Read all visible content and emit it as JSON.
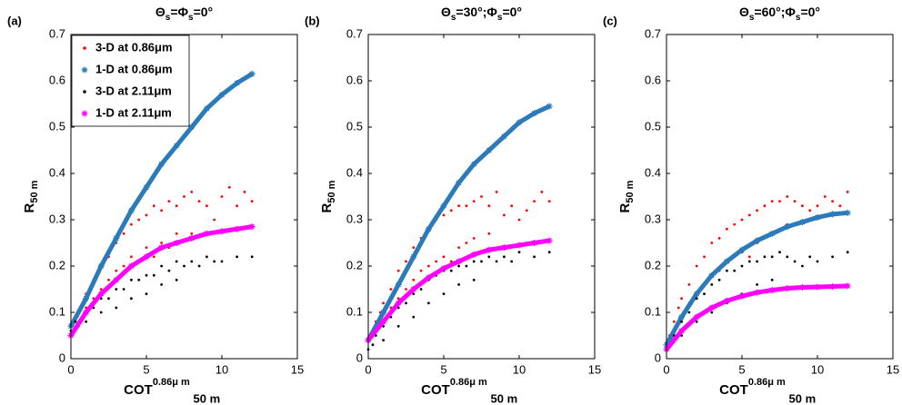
{
  "chart_data": [
    {
      "type": "scatter",
      "panel_label": "(a)",
      "title": [
        "Θ",
        "s",
        "=Φ",
        "s",
        "=0°"
      ],
      "x_label": "COT",
      "x_label_sup": "0.86μ m",
      "x_label_sub": "50 m",
      "y_label": "R",
      "y_label_sub": "50 m",
      "xlim": [
        0,
        15
      ],
      "ylim": [
        0,
        0.7
      ],
      "xticks": [
        0,
        5,
        10,
        15
      ],
      "yticks": [
        0,
        0.1,
        0.2,
        0.3,
        0.4,
        0.5,
        0.6,
        0.7
      ],
      "legend": "upper left",
      "series": [
        {
          "name": "3-D at 0.86μm",
          "color": "#ff0000",
          "marker": "dot",
          "x": [
            0.2,
            0.5,
            0.8,
            1,
            1,
            1.5,
            1.5,
            2,
            2,
            2.5,
            2.5,
            3,
            3,
            3.5,
            3.5,
            4,
            4,
            4.5,
            4.5,
            5,
            5,
            5.5,
            5.5,
            6,
            6,
            6.5,
            6.5,
            7,
            7,
            7.5,
            8,
            8,
            8.5,
            9,
            9.5,
            10,
            10.5,
            11,
            11.5,
            12
          ],
          "values": [
            0.08,
            0.1,
            0.12,
            0.14,
            0.11,
            0.17,
            0.13,
            0.2,
            0.15,
            0.22,
            0.17,
            0.25,
            0.19,
            0.27,
            0.2,
            0.29,
            0.22,
            0.3,
            0.21,
            0.31,
            0.24,
            0.33,
            0.22,
            0.32,
            0.25,
            0.34,
            0.24,
            0.33,
            0.27,
            0.35,
            0.36,
            0.27,
            0.34,
            0.33,
            0.3,
            0.35,
            0.37,
            0.33,
            0.36,
            0.34
          ]
        },
        {
          "name": "1-D at 0.86μm",
          "color": "#2b7bba",
          "marker": "star",
          "x": [
            0,
            1,
            2,
            3,
            4,
            5,
            6,
            7,
            8,
            9,
            10,
            11,
            12
          ],
          "values": [
            0.07,
            0.13,
            0.2,
            0.26,
            0.32,
            0.37,
            0.42,
            0.46,
            0.5,
            0.54,
            0.57,
            0.595,
            0.615
          ]
        },
        {
          "name": "3-D at 2.11μm",
          "color": "#000000",
          "marker": "dot",
          "x": [
            0,
            0.3,
            0.5,
            1,
            1,
            1.5,
            2,
            2,
            2.5,
            3,
            3,
            3.5,
            4,
            4,
            4.5,
            5,
            5,
            5.5,
            6,
            6,
            6.5,
            7,
            7,
            7.5,
            8,
            8.5,
            9,
            9.5,
            10,
            11,
            12
          ],
          "values": [
            0.06,
            0.08,
            0.07,
            0.1,
            0.08,
            0.11,
            0.13,
            0.1,
            0.13,
            0.15,
            0.11,
            0.15,
            0.17,
            0.13,
            0.17,
            0.18,
            0.14,
            0.18,
            0.2,
            0.16,
            0.19,
            0.21,
            0.17,
            0.2,
            0.21,
            0.2,
            0.22,
            0.21,
            0.21,
            0.22,
            0.22
          ]
        },
        {
          "name": "1-D at 2.11μm",
          "color": "#ff00ff",
          "marker": "star",
          "x": [
            0,
            1,
            2,
            3,
            4,
            5,
            6,
            7,
            8,
            9,
            10,
            11,
            12
          ],
          "values": [
            0.05,
            0.1,
            0.14,
            0.17,
            0.2,
            0.22,
            0.24,
            0.25,
            0.26,
            0.27,
            0.275,
            0.28,
            0.285
          ]
        }
      ]
    },
    {
      "type": "scatter",
      "panel_label": "(b)",
      "title": [
        "Θ",
        "s",
        "=30°;Φ",
        "s",
        "=0°"
      ],
      "x_label": "COT",
      "x_label_sup": "0.86μ m",
      "x_label_sub": "50 m",
      "y_label": "R",
      "y_label_sub": "50 m",
      "xlim": [
        0,
        15
      ],
      "ylim": [
        0,
        0.7
      ],
      "xticks": [
        0,
        5,
        10,
        15
      ],
      "yticks": [
        0,
        0.1,
        0.2,
        0.3,
        0.4,
        0.5,
        0.6,
        0.7
      ],
      "series": [
        {
          "color": "#ff0000",
          "marker": "dot",
          "x": [
            0,
            0.5,
            0.8,
            1,
            1,
            1.5,
            1.5,
            2,
            2,
            2.5,
            2.5,
            3,
            3,
            3.5,
            3.5,
            4,
            4,
            4.5,
            4.5,
            5,
            5,
            5.5,
            5.5,
            6,
            6,
            6.5,
            6.5,
            7,
            7,
            7.5,
            8,
            8,
            8.5,
            9,
            9.5,
            10,
            10.5,
            11,
            11.5,
            12
          ],
          "values": [
            0.04,
            0.08,
            0.1,
            0.12,
            0.08,
            0.15,
            0.11,
            0.19,
            0.13,
            0.21,
            0.15,
            0.24,
            0.17,
            0.26,
            0.19,
            0.28,
            0.2,
            0.3,
            0.21,
            0.31,
            0.22,
            0.32,
            0.21,
            0.33,
            0.24,
            0.33,
            0.25,
            0.34,
            0.26,
            0.35,
            0.33,
            0.27,
            0.36,
            0.31,
            0.33,
            0.3,
            0.32,
            0.34,
            0.36,
            0.34
          ]
        },
        {
          "color": "#2b7bba",
          "marker": "star",
          "x": [
            0,
            1,
            2,
            3,
            4,
            5,
            6,
            7,
            8,
            9,
            10,
            11,
            12
          ],
          "values": [
            0.04,
            0.1,
            0.16,
            0.22,
            0.28,
            0.33,
            0.38,
            0.42,
            0.45,
            0.48,
            0.51,
            0.53,
            0.545
          ]
        },
        {
          "color": "#000000",
          "marker": "dot",
          "x": [
            0,
            0.3,
            0.5,
            1,
            1,
            1.5,
            2,
            2,
            2.5,
            3,
            3,
            3.5,
            4,
            4,
            4.5,
            5,
            5,
            5.5,
            6,
            6,
            6.5,
            7,
            7,
            7.5,
            8,
            8.5,
            9,
            9.5,
            10,
            11,
            12
          ],
          "values": [
            0.02,
            0.03,
            0.05,
            0.07,
            0.04,
            0.09,
            0.11,
            0.07,
            0.12,
            0.14,
            0.09,
            0.15,
            0.17,
            0.12,
            0.18,
            0.19,
            0.14,
            0.19,
            0.2,
            0.16,
            0.2,
            0.21,
            0.17,
            0.21,
            0.22,
            0.21,
            0.22,
            0.21,
            0.23,
            0.22,
            0.23
          ]
        },
        {
          "color": "#ff00ff",
          "marker": "star",
          "x": [
            0,
            1,
            2,
            3,
            4,
            5,
            6,
            7,
            8,
            9,
            10,
            11,
            12
          ],
          "values": [
            0.04,
            0.08,
            0.12,
            0.15,
            0.175,
            0.195,
            0.21,
            0.225,
            0.235,
            0.24,
            0.245,
            0.25,
            0.255
          ]
        }
      ]
    },
    {
      "type": "scatter",
      "panel_label": "(c)",
      "title": [
        "Θ",
        "s",
        "=60°;Φ",
        "s",
        "=0°"
      ],
      "x_label": "COT",
      "x_label_sup": "0.86μ m",
      "x_label_sub": "50 m",
      "y_label": "R",
      "y_label_sub": "50 m",
      "xlim": [
        0,
        15
      ],
      "ylim": [
        0,
        0.7
      ],
      "xticks": [
        0,
        5,
        10,
        15
      ],
      "yticks": [
        0,
        0.1,
        0.2,
        0.3,
        0.4,
        0.5,
        0.6,
        0.7
      ],
      "series": [
        {
          "color": "#ff0000",
          "marker": "dot",
          "x": [
            0.2,
            0.5,
            0.8,
            1,
            1,
            1.5,
            1.5,
            2,
            2,
            2.5,
            2.5,
            3,
            3,
            3.5,
            3.5,
            4,
            4,
            4.5,
            4.5,
            5,
            5,
            5.5,
            5.5,
            6,
            6,
            6.5,
            6.5,
            7,
            7,
            7.5,
            8,
            8,
            8.5,
            9,
            9.5,
            10,
            10.5,
            11,
            11.5,
            12
          ],
          "values": [
            0.05,
            0.08,
            0.11,
            0.13,
            0.09,
            0.16,
            0.12,
            0.2,
            0.14,
            0.22,
            0.16,
            0.25,
            0.18,
            0.26,
            0.19,
            0.28,
            0.21,
            0.29,
            0.22,
            0.3,
            0.23,
            0.31,
            0.22,
            0.32,
            0.25,
            0.33,
            0.26,
            0.34,
            0.27,
            0.34,
            0.35,
            0.29,
            0.34,
            0.33,
            0.32,
            0.33,
            0.35,
            0.34,
            0.33,
            0.36
          ]
        },
        {
          "color": "#2b7bba",
          "marker": "star",
          "x": [
            0,
            1,
            2,
            3,
            4,
            5,
            6,
            7,
            8,
            9,
            10,
            11,
            12
          ],
          "values": [
            0.03,
            0.09,
            0.14,
            0.18,
            0.21,
            0.235,
            0.255,
            0.27,
            0.285,
            0.295,
            0.305,
            0.312,
            0.315
          ]
        },
        {
          "color": "#000000",
          "marker": "dot",
          "x": [
            0,
            0.3,
            0.5,
            1,
            1,
            1.5,
            2,
            2,
            2.5,
            3,
            3,
            3.5,
            4,
            4,
            4.5,
            5,
            5,
            5.5,
            6,
            6,
            6.5,
            7,
            7,
            7.5,
            8,
            8.5,
            9,
            9.5,
            10,
            11,
            12
          ],
          "values": [
            0.02,
            0.03,
            0.05,
            0.08,
            0.05,
            0.1,
            0.13,
            0.08,
            0.14,
            0.16,
            0.1,
            0.17,
            0.19,
            0.12,
            0.19,
            0.2,
            0.14,
            0.21,
            0.21,
            0.16,
            0.22,
            0.22,
            0.17,
            0.23,
            0.22,
            0.21,
            0.2,
            0.22,
            0.21,
            0.22,
            0.23
          ]
        },
        {
          "color": "#ff00ff",
          "marker": "star",
          "x": [
            0,
            1,
            2,
            3,
            4,
            5,
            6,
            7,
            8,
            9,
            10,
            11,
            12
          ],
          "values": [
            0.02,
            0.06,
            0.09,
            0.11,
            0.125,
            0.135,
            0.143,
            0.148,
            0.152,
            0.154,
            0.155,
            0.156,
            0.157
          ]
        }
      ]
    }
  ]
}
